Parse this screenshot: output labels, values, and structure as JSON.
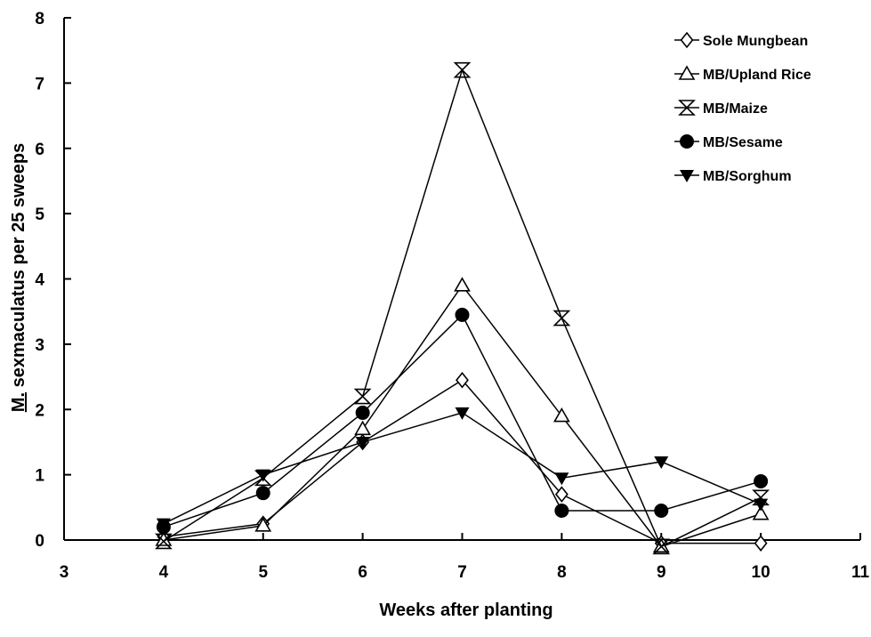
{
  "chart_data": {
    "type": "line",
    "xlabel": "Weeks after planting",
    "ylabel_prefix": "M.",
    "ylabel_rest": " sexmaculatus per 25 sweeps",
    "xlim": [
      3,
      11
    ],
    "ylim": [
      0,
      8
    ],
    "x_ticks": [
      3,
      4,
      5,
      6,
      7,
      8,
      9,
      10,
      11
    ],
    "y_ticks": [
      0,
      1,
      2,
      3,
      4,
      5,
      6,
      7,
      8
    ],
    "grid": false,
    "legend_position": "top-right",
    "x": [
      4,
      5,
      6,
      7,
      8,
      9,
      10
    ],
    "series": [
      {
        "name": "Sole Mungbean",
        "marker": "diamond",
        "values": [
          0.05,
          0.25,
          1.5,
          2.45,
          0.7,
          -0.05,
          -0.05
        ]
      },
      {
        "name": "MB/Upland Rice",
        "marker": "triangle-up",
        "values": [
          0.0,
          0.22,
          1.7,
          3.9,
          1.9,
          -0.1,
          0.4
        ]
      },
      {
        "name": "MB/Maize",
        "marker": "hourglass",
        "values": [
          -0.02,
          0.95,
          2.2,
          7.2,
          3.4,
          -0.1,
          0.65
        ]
      },
      {
        "name": "MB/Sesame",
        "marker": "circle",
        "values": [
          0.2,
          0.72,
          1.95,
          3.45,
          0.45,
          0.45,
          0.9
        ]
      },
      {
        "name": "MB/Sorghum",
        "marker": "triangle-down",
        "values": [
          0.25,
          1.0,
          1.5,
          1.95,
          0.95,
          1.2,
          0.55
        ]
      }
    ]
  }
}
